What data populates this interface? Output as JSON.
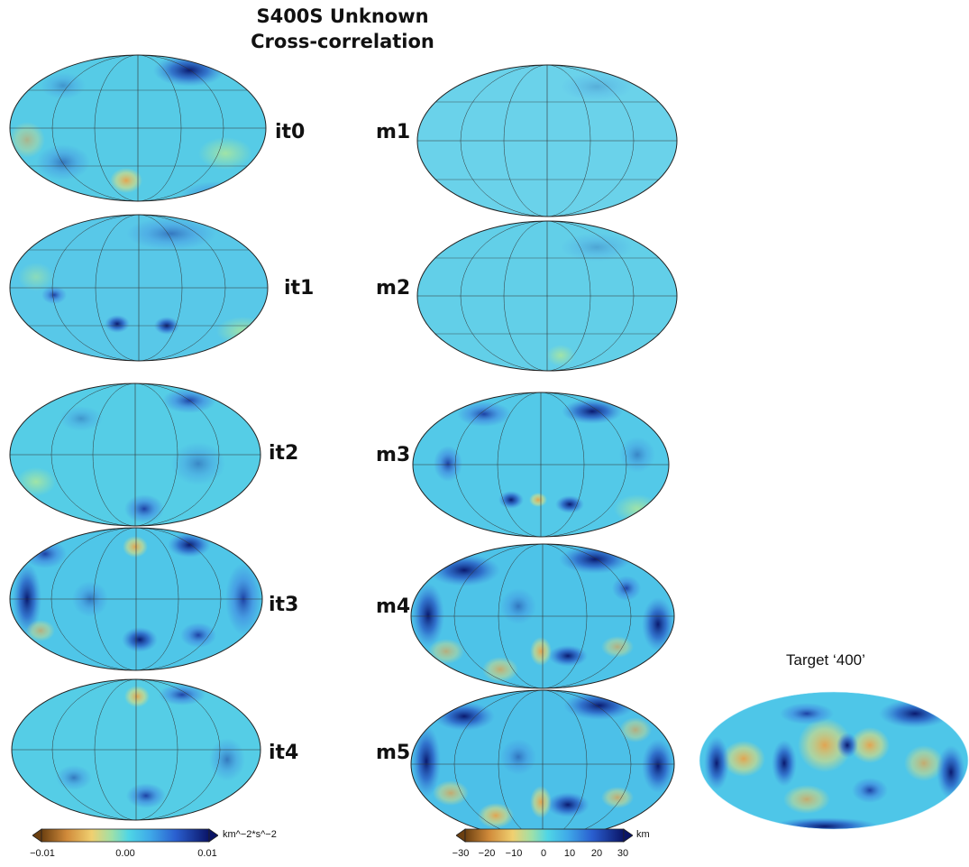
{
  "header": {
    "title_line1": "S400S Unknown",
    "title_line2": "Cross-correlation"
  },
  "panels": {
    "it0": {
      "label": "it0"
    },
    "it1": {
      "label": "it1"
    },
    "it2": {
      "label": "it2"
    },
    "it3": {
      "label": "it3"
    },
    "it4": {
      "label": "it4"
    },
    "m1": {
      "label": "m1"
    },
    "m2": {
      "label": "m2"
    },
    "m3": {
      "label": "m3"
    },
    "m4": {
      "label": "m4"
    },
    "m5": {
      "label": "m5"
    },
    "target": {
      "label": "Target ‘400’"
    }
  },
  "colorbars": {
    "left": {
      "unit": "km^−2*s^−2",
      "ticks": [
        "−0.01",
        "0.00",
        "0.01"
      ],
      "range": [
        -0.01,
        0.01
      ]
    },
    "right": {
      "unit": "km",
      "ticks": [
        "−30",
        "−20",
        "−10",
        "0",
        "10",
        "20",
        "30"
      ],
      "range": [
        -30,
        30
      ]
    }
  },
  "colors": {
    "low": "#8a5a1e",
    "orange": "#e8a24a",
    "yellow": "#f0e070",
    "cyan": "#4fd6e6",
    "mid": "#5cc8e8",
    "blue": "#2f6fd8",
    "navy": "#0c1f7a"
  }
}
